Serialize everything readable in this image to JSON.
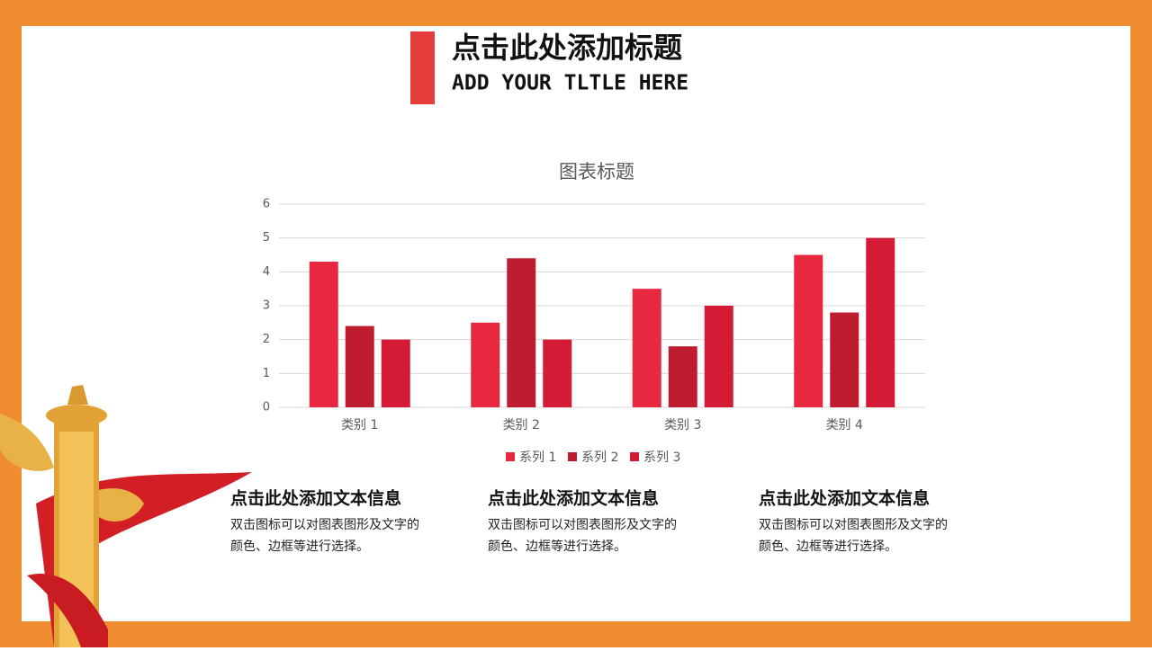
{
  "header": {
    "title": "点击此处添加标题",
    "subtitle": "ADD YOUR TLTLE HERE"
  },
  "chart_data": {
    "type": "bar",
    "title": "图表标题",
    "categories": [
      "类别 1",
      "类别 2",
      "类别 3",
      "类别 4"
    ],
    "series": [
      {
        "name": "系列 1",
        "color": "#e8283f",
        "values": [
          4.3,
          2.5,
          3.5,
          4.5
        ]
      },
      {
        "name": "系列 2",
        "color": "#bf1c30",
        "values": [
          2.4,
          4.4,
          1.8,
          2.8
        ]
      },
      {
        "name": "系列 3",
        "color": "#d41a35",
        "values": [
          2,
          2,
          3,
          5
        ]
      }
    ],
    "ylim": [
      0,
      6
    ],
    "yticks": [
      0,
      1,
      2,
      3,
      4,
      5,
      6
    ],
    "grid": true,
    "legend": "bottom"
  },
  "blocks": [
    {
      "title": "点击此处添加文本信息",
      "lines": [
        "双击图标可以对图表图形及文字的",
        "颜色、边框等进行选择。"
      ]
    },
    {
      "title": "点击此处添加文本信息",
      "lines": [
        "双击图标可以对图表图形及文字的",
        "颜色、边框等进行选择。"
      ]
    },
    {
      "title": "点击此处添加文本信息",
      "lines": [
        "双击图标可以对图表图形及文字的",
        "颜色、边框等进行选择。"
      ]
    }
  ]
}
